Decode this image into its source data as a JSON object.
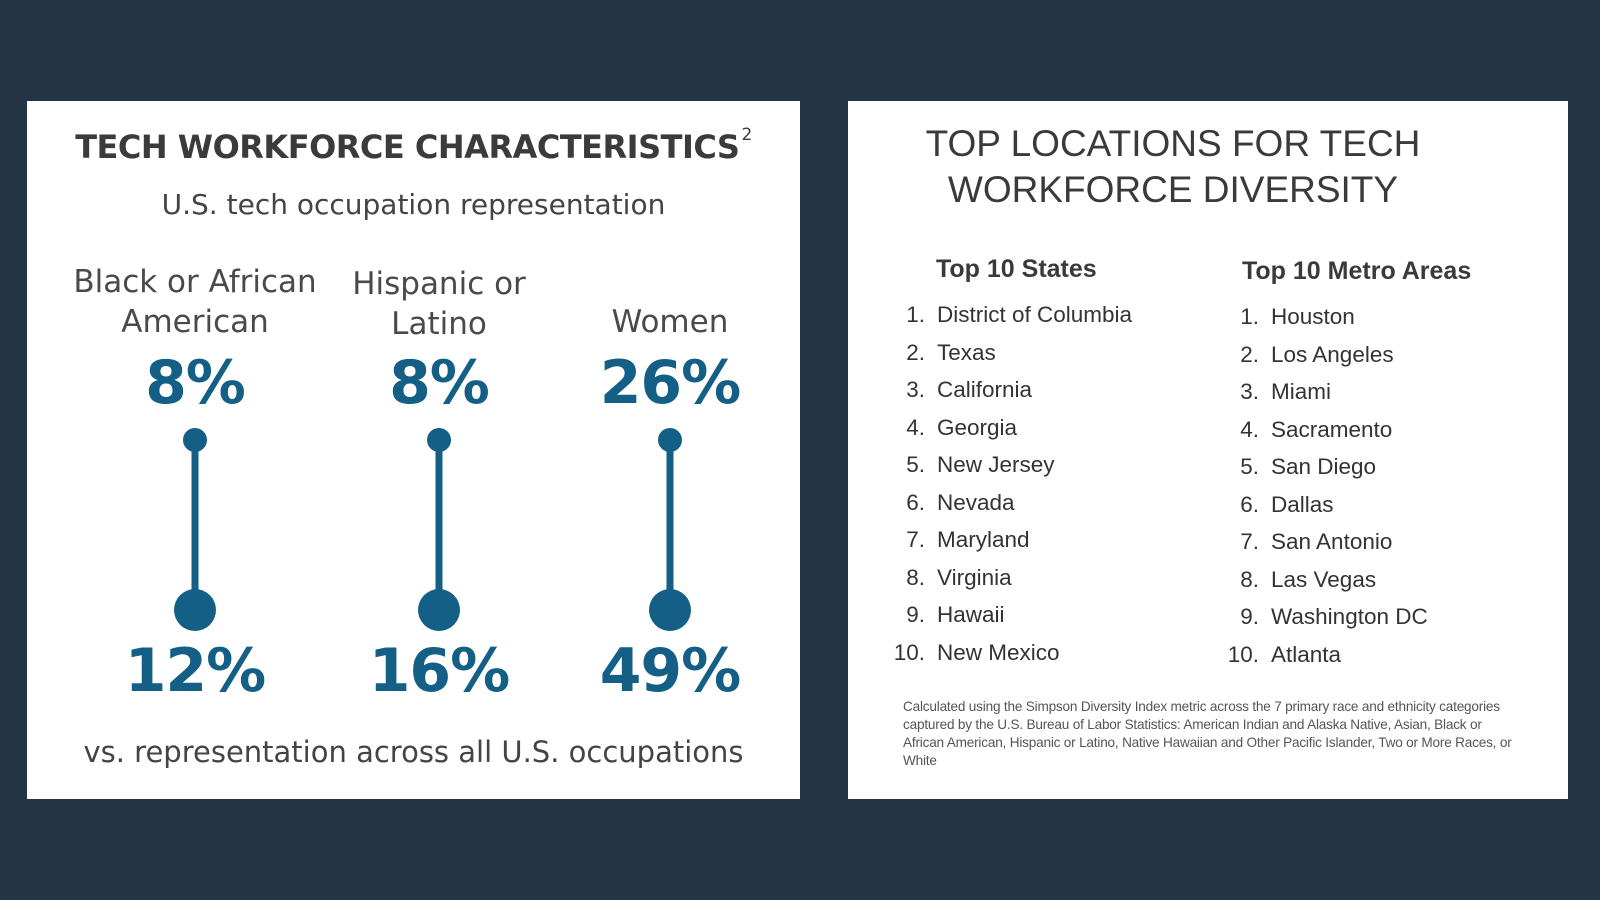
{
  "left": {
    "title": "TECH WORKFORCE CHARACTERISTICS",
    "title_sup": "2",
    "subtitle": "U.S. tech occupation representation",
    "footer": "vs. representation across all U.S. occupations",
    "accent_color": "#135f86",
    "groups": [
      {
        "label_line1": "Black or African",
        "label_line2": "American",
        "tech_pct": "8%",
        "all_pct": "12%"
      },
      {
        "label_line1": "Hispanic or",
        "label_line2": "Latino",
        "tech_pct": "8%",
        "all_pct": "16%"
      },
      {
        "label_line1": "",
        "label_line2": "Women",
        "tech_pct": "26%",
        "all_pct": "49%"
      }
    ]
  },
  "right": {
    "title_line1": "TOP LOCATIONS FOR TECH",
    "title_line2": "WORKFORCE DIVERSITY",
    "states_heading": "Top 10 States",
    "metros_heading": "Top 10 Metro Areas",
    "states": [
      {
        "num": "1.",
        "name": "District of Columbia"
      },
      {
        "num": "2.",
        "name": "Texas"
      },
      {
        "num": "3.",
        "name": "California"
      },
      {
        "num": "4.",
        "name": "Georgia"
      },
      {
        "num": "5.",
        "name": "New Jersey"
      },
      {
        "num": "6.",
        "name": "Nevada"
      },
      {
        "num": "7.",
        "name": "Maryland"
      },
      {
        "num": "8.",
        "name": "Virginia"
      },
      {
        "num": "9.",
        "name": "Hawaii"
      },
      {
        "num": "10.",
        "name": "New Mexico"
      }
    ],
    "metros": [
      {
        "num": "1.",
        "name": "Houston"
      },
      {
        "num": "2.",
        "name": "Los Angeles"
      },
      {
        "num": "3.",
        "name": "Miami"
      },
      {
        "num": "4.",
        "name": "Sacramento"
      },
      {
        "num": "5.",
        "name": "San Diego"
      },
      {
        "num": "6.",
        "name": "Dallas"
      },
      {
        "num": "7.",
        "name": "San Antonio"
      },
      {
        "num": "8.",
        "name": "Las Vegas"
      },
      {
        "num": "9.",
        "name": "Washington DC"
      },
      {
        "num": "10.",
        "name": "Atlanta"
      }
    ],
    "footnote": "Calculated using the Simpson Diversity Index metric across the 7 primary race and ethnicity categories captured by the U.S. Bureau of Labor Statistics: American Indian and Alaska Native, Asian, Black or African American, Hispanic or Latino, Native Hawaiian and Other Pacific Islander, Two or More Races, or White"
  }
}
